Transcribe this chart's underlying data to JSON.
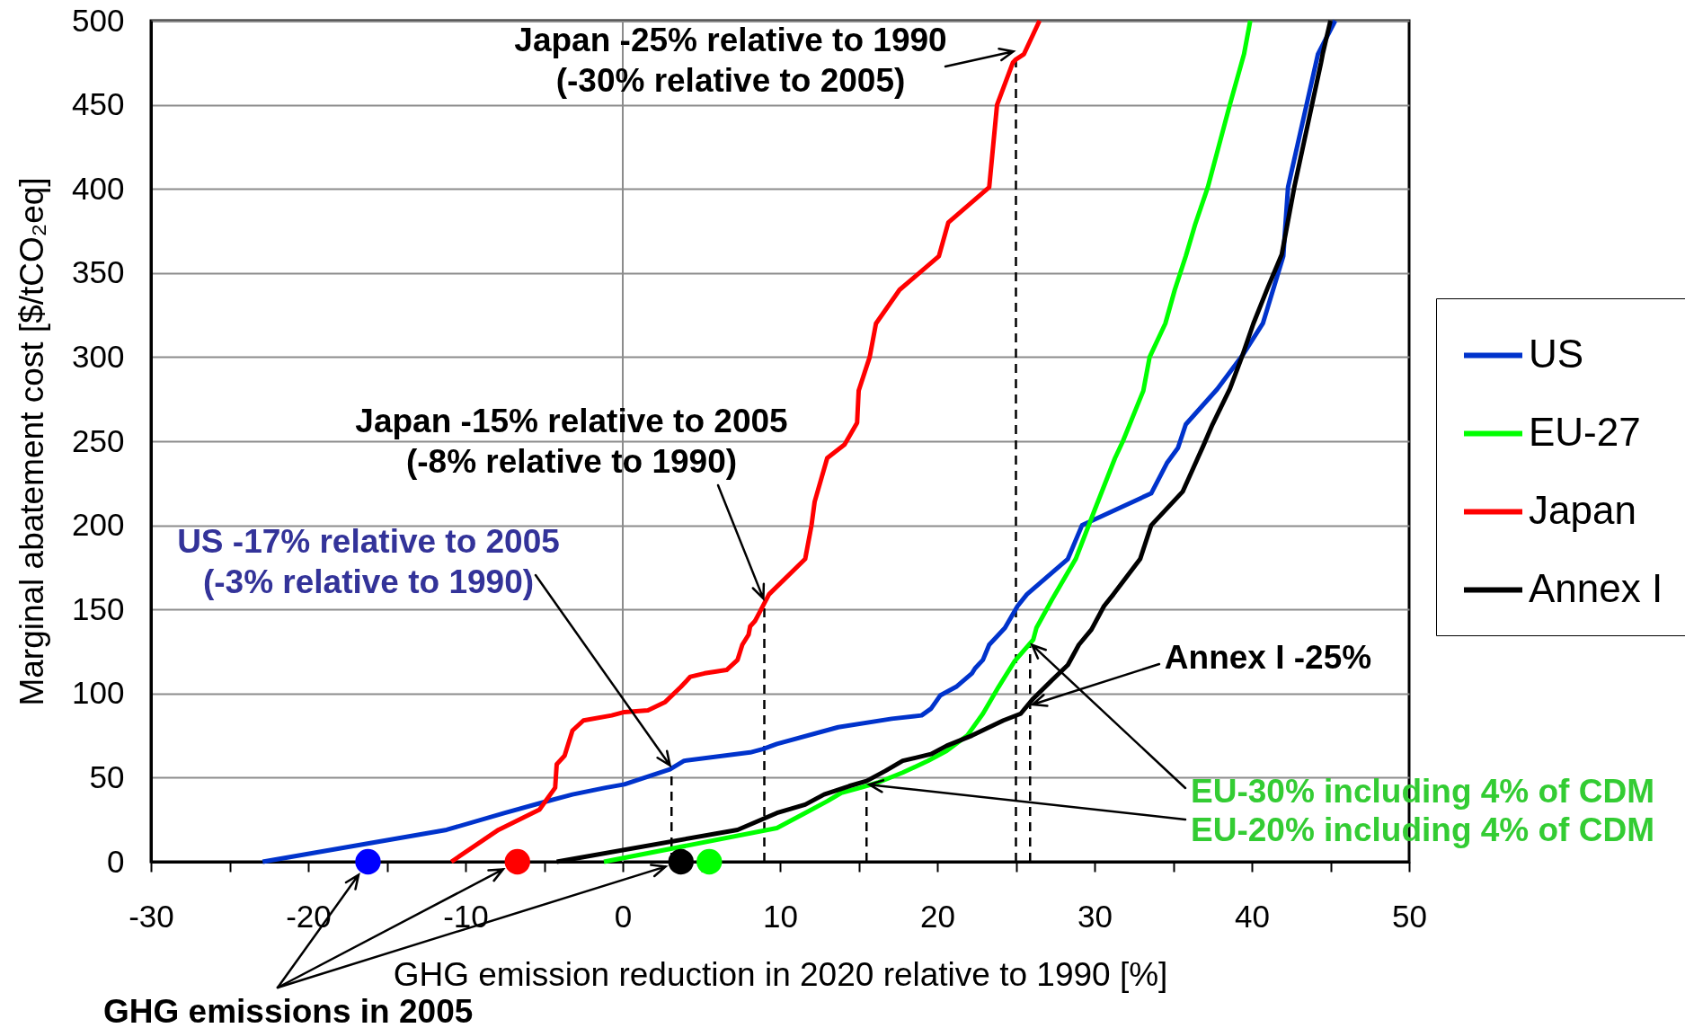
{
  "chart_data": {
    "type": "line",
    "xlabel": "GHG emission reduction in 2020 relative to 1990 [%]",
    "ylabel": "Marginal abatement cost [$/tCO₂eq]",
    "xlim": [
      -30,
      50
    ],
    "xticks": [
      -30,
      {
        "value": -25,
        "label": null
      },
      -20,
      {
        "value": -15,
        "label": null
      },
      -10,
      {
        "value": -5,
        "label": null
      },
      0,
      {
        "value": 5,
        "label": null
      },
      10,
      {
        "value": 15,
        "label": null
      },
      20,
      {
        "value": 25,
        "label": null
      },
      30,
      {
        "value": 35,
        "label": null
      },
      40,
      {
        "value": 45,
        "label": null
      },
      50
    ],
    "ylim": [
      0,
      500
    ],
    "yticks": [
      0,
      50,
      100,
      150,
      200,
      250,
      300,
      350,
      400,
      450,
      500
    ],
    "grid": "y",
    "legend": "right",
    "marker": "none",
    "line_style": "solid",
    "ref_lines": [
      {
        "axis": "x",
        "value": 0,
        "color": "#8c8c8c"
      }
    ],
    "series": [
      {
        "name": "US",
        "color": "#0033cc",
        "x": [
          -22.9,
          -11.2,
          -7.5,
          -5.2,
          -3.2,
          -1.1,
          0.1,
          1.7,
          3.0,
          3.9,
          8.1,
          8.9,
          9.8,
          13.7,
          17.1,
          19.0,
          19.6,
          20.2,
          21.2,
          22.2,
          22.4,
          22.9,
          23.3,
          24.3,
          25.1,
          25.7,
          28.3,
          29.2,
          33.6,
          34.6,
          35.3,
          35.8,
          37.8,
          39.4,
          40.7,
          42.0,
          42.3,
          44.2,
          45.3
        ],
        "values": [
          0,
          19,
          29,
          35,
          40,
          44,
          46,
          51,
          55,
          60,
          65,
          67,
          70,
          80,
          85,
          87,
          91,
          99,
          104,
          112,
          115,
          120,
          129,
          139,
          152,
          159,
          180,
          200,
          219,
          237,
          246,
          260,
          281,
          301,
          320,
          360,
          401,
          480,
          500
        ]
      },
      {
        "name": "EU-27",
        "color": "#00ff00",
        "x": [
          -1.2,
          9.8,
          11.6,
          13.0,
          13.9,
          15.1,
          16.2,
          17.8,
          19.4,
          20.6,
          21.9,
          22.9,
          23.9,
          24.9,
          26.1,
          26.3,
          27.3,
          28.8,
          30.0,
          31.3,
          31.8,
          33.1,
          33.5,
          34.5,
          35.1,
          35.8,
          36.4,
          37.2,
          38.6,
          39.5,
          39.9
        ],
        "values": [
          0,
          20,
          29,
          36,
          41,
          44,
          47,
          53,
          60,
          66,
          75,
          88,
          104,
          119,
          132,
          139,
          156,
          180,
          209,
          240,
          250,
          280,
          300,
          320,
          340,
          360,
          379,
          401,
          450,
          480,
          500
        ]
      },
      {
        "name": "Japan",
        "color": "#ff0000",
        "x": [
          -10.9,
          -7.9,
          -5.3,
          -4.3,
          -4.2,
          -3.7,
          -3.5,
          -3.2,
          -2.5,
          -0.7,
          0.1,
          1.6,
          2.7,
          3.7,
          4.3,
          5.2,
          6.6,
          7.3,
          7.6,
          8.0,
          8.1,
          8.4,
          9.3,
          11.6,
          12.0,
          12.2,
          13.0,
          14.1,
          14.9,
          15.0,
          15.7,
          16.1,
          17.6,
          20.1,
          20.7,
          23.3,
          23.8,
          24.8,
          25.0,
          25.5,
          26.5
        ],
        "values": [
          0,
          19,
          31,
          44,
          58,
          63,
          69,
          78,
          84,
          87,
          89,
          90,
          95,
          104,
          110,
          112,
          114,
          120,
          129,
          135,
          140,
          143,
          159,
          180,
          200,
          214,
          240,
          248,
          261,
          280,
          300,
          320,
          340,
          360,
          380,
          401,
          450,
          475,
          477,
          480,
          500
        ]
      },
      {
        "name": "Annex I",
        "color": "#000000",
        "x": [
          -4.2,
          7.3,
          9.8,
          11.6,
          12.8,
          14.4,
          15.5,
          16.7,
          17.8,
          19.6,
          20.6,
          22.2,
          24.2,
          25.3,
          26.1,
          27.3,
          28.3,
          29.0,
          29.8,
          30.6,
          31.2,
          32.9,
          33.6,
          35.6,
          36.9,
          37.5,
          38.6,
          39.4,
          40.1,
          41.0,
          41.9,
          42.7,
          44.4,
          44.5,
          45.0
        ],
        "values": [
          0,
          19,
          29,
          34,
          40,
          45,
          48,
          54,
          60,
          64,
          69,
          75,
          84,
          88,
          97,
          108,
          117,
          129,
          138,
          152,
          159,
          180,
          200,
          220,
          247,
          260,
          281,
          301,
          320,
          341,
          361,
          401,
          475,
          480,
          500
        ]
      },
      {
        "color": "#000000",
        "line_style": "dashed",
        "x": [
          25.0,
          25.0
        ],
        "values": [
          0,
          477
        ]
      },
      {
        "color": "#000000",
        "line_style": "dashed",
        "x": [
          9.0,
          9.0
        ],
        "values": [
          0,
          155
        ]
      },
      {
        "color": "#000000",
        "line_style": "dashed",
        "x": [
          3.1,
          3.1
        ],
        "values": [
          0,
          56
        ]
      },
      {
        "color": "#000000",
        "line_style": "dashed",
        "x": [
          15.5,
          15.5
        ],
        "values": [
          0,
          46
        ]
      },
      {
        "color": "#000000",
        "line_style": "dashed",
        "x": [
          25.9,
          25.9
        ],
        "values": [
          0,
          130
        ]
      },
      {
        "type": "scatter",
        "marker": "circle",
        "x": [
          -16.2,
          -6.7,
          3.7,
          5.5
        ],
        "values": [
          0,
          0,
          0,
          0
        ],
        "colors": [
          "#0000ff",
          "#ff0000",
          "#000000",
          "#00ff00"
        ]
      }
    ],
    "annotations": [
      {
        "text": "Japan -25% relative to 1990\n(-30% relative to 2005)",
        "x": 25.0,
        "y": 482
      },
      {
        "text": "Japan -15% relative to 2005\n(-8% relative to 1990)",
        "x": 9.0,
        "y": 155
      },
      {
        "text": "US -17% relative to 2005\n(-3% relative to 1990)",
        "x": 3.1,
        "y": 56
      },
      {
        "text": "Annex I -25%",
        "x": 25.9,
        "y": 93
      },
      {
        "text": "EU-30% including 4% of CDM",
        "x": 25.9,
        "y": 130
      },
      {
        "text": "EU-20% including 4% of CDM",
        "x": 15.5,
        "y": 46
      },
      "GHG emissions in 2005"
    ]
  }
}
